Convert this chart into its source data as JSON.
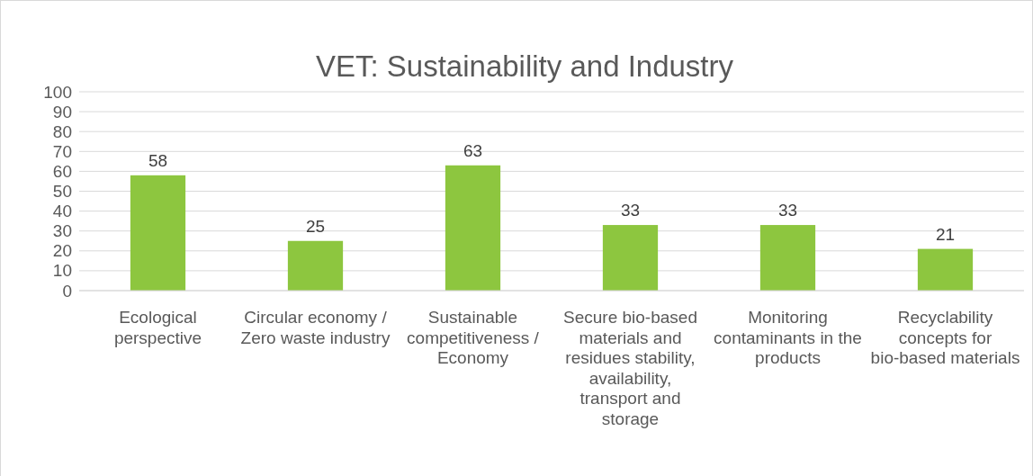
{
  "chart_data": {
    "type": "bar",
    "title": "VET: Sustainability and Industry",
    "categories": [
      "Ecological perspective",
      "Circular economy / Zero waste industry",
      "Sustainable competitiveness / Economy",
      "Secure bio-based materials and residues stability, availability, transport and storage",
      "Monitoring contaminants in the products",
      "Recyclability concepts for bio-based materials"
    ],
    "values": [
      58,
      25,
      63,
      33,
      33,
      21
    ],
    "color": "#8dc63f",
    "ylim": [
      0,
      100
    ],
    "yticks": [
      0,
      10,
      20,
      30,
      40,
      50,
      60,
      70,
      80,
      90,
      100
    ],
    "grid": "y",
    "data_labels": true
  }
}
